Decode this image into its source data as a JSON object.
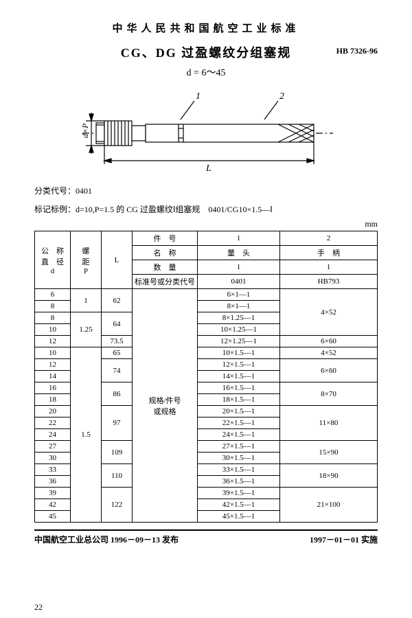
{
  "header": {
    "org": "中华人民共和国航空工业标准",
    "title": "CG、DG 过盈螺纹分组塞规",
    "code": "HB 7326-96",
    "subtitle": "d = 6～45"
  },
  "diagram": {
    "labels": {
      "one": "1",
      "two": "2",
      "L": "L",
      "dxp": "d×P"
    }
  },
  "meta": {
    "class_label": "分类代号：",
    "class_value": "0401",
    "mark_label": "标记标例：",
    "mark_value": "d=10,P=1.5 的 CG 过盈螺纹Ⅰ组塞规　0401/CG10×1.5—Ⅰ",
    "unit": "mm"
  },
  "table": {
    "head": {
      "nom_dia1": "公　称",
      "nom_dia2": "直　径",
      "nom_dia3": "d",
      "pitch1": "螺",
      "pitch2": "距",
      "pitch3": "P",
      "L": "L",
      "partno": "件　号",
      "one": "1",
      "two": "2",
      "name": "名　称",
      "qty": "数　量",
      "head_liangtou": "量　头",
      "head_shoubing": "手　柄",
      "qty1": "1",
      "qty2": "1",
      "stdno": "标准号或分类代号",
      "std1": "0401",
      "std2": "HB793",
      "spec_label1": "规格/件号",
      "spec_label2": "或规格"
    },
    "rows": [
      {
        "d": "6",
        "P": "1",
        "P_span": 2,
        "L": "62",
        "L_span": 2,
        "spec": "6×1—1",
        "handle": "4×52",
        "handle_span": 4
      },
      {
        "d": "8",
        "spec": "8×1—1"
      },
      {
        "d": "8",
        "P": "1.25",
        "P_span": 3,
        "L": "64",
        "L_span": 2,
        "spec": "8×1.25—1"
      },
      {
        "d": "10",
        "spec": "10×1.25—1"
      },
      {
        "d": "12",
        "L": "73.5",
        "L_span": 1,
        "spec": "12×1.25—1",
        "handle": "6×60",
        "handle_span": 1
      },
      {
        "d": "10",
        "P": "1.5",
        "P_span": 15,
        "L": "65",
        "L_span": 1,
        "spec": "10×1.5—1",
        "handle": "4×52",
        "handle_span": 1
      },
      {
        "d": "12",
        "L": "74",
        "L_span": 2,
        "spec": "12×1.5—1",
        "handle": "6×60",
        "handle_span": 2
      },
      {
        "d": "14",
        "spec": "14×1.5—1"
      },
      {
        "d": "16",
        "L": "86",
        "L_span": 2,
        "spec": "16×1.5—1",
        "handle": "8×70",
        "handle_span": 2
      },
      {
        "d": "18",
        "spec": "18×1.5—1"
      },
      {
        "d": "20",
        "L": "97",
        "L_span": 3,
        "spec": "20×1.5—1",
        "handle": "11×80",
        "handle_span": 3
      },
      {
        "d": "22",
        "spec": "22×1.5—1"
      },
      {
        "d": "24",
        "spec": "24×1.5—1"
      },
      {
        "d": "27",
        "L": "109",
        "L_span": 2,
        "spec": "27×1.5—1",
        "handle": "15×90",
        "handle_span": 2
      },
      {
        "d": "30",
        "spec": "30×1.5—1"
      },
      {
        "d": "33",
        "L": "110",
        "L_span": 2,
        "spec": "33×1.5—1",
        "handle": "18×90",
        "handle_span": 2
      },
      {
        "d": "36",
        "spec": "36×1.5—1"
      },
      {
        "d": "39",
        "L": "122",
        "L_span": 3,
        "spec": "39×1.5—1",
        "handle": "21×100",
        "handle_span": 3
      },
      {
        "d": "42",
        "spec": "42×1.5—1"
      },
      {
        "d": "45",
        "spec": "45×1.5—1"
      }
    ]
  },
  "footer": {
    "left": "中国航空工业总公司 1996－09－13 发布",
    "right": "1997－01－01 实施",
    "page": "22"
  }
}
